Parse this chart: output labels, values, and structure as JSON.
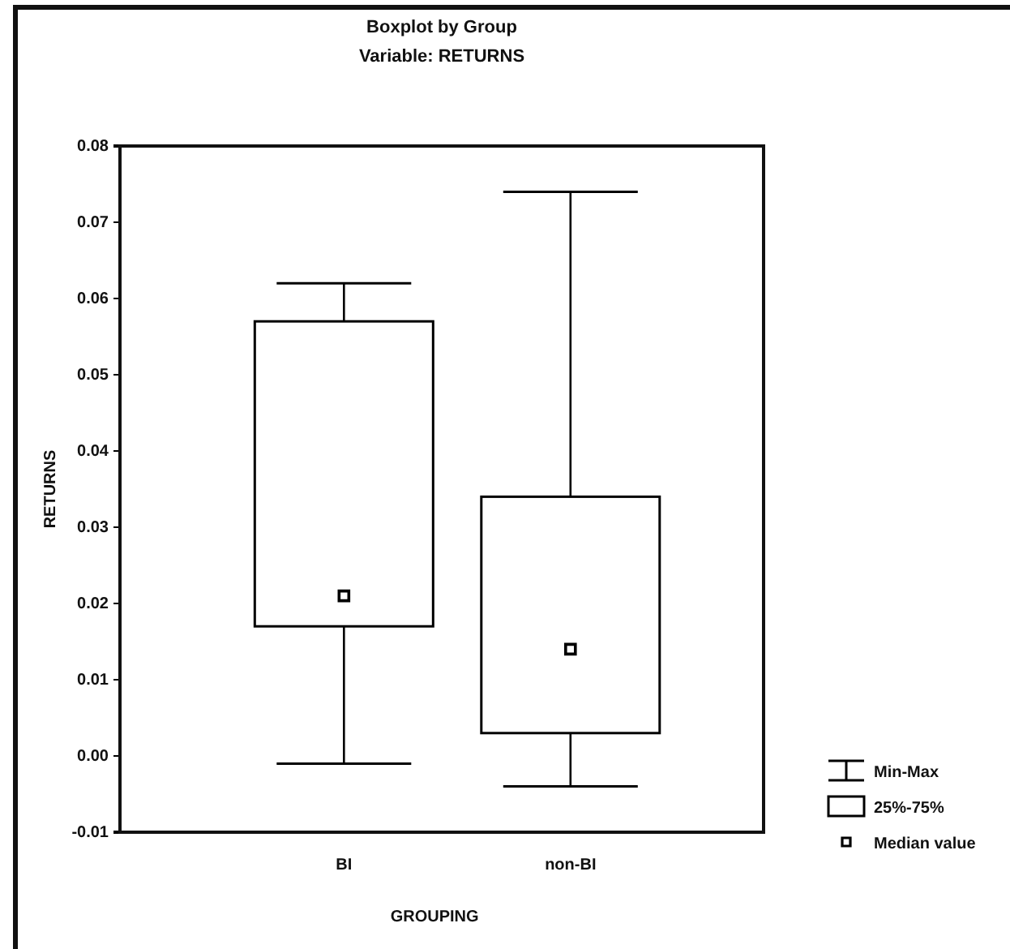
{
  "chart_data": {
    "type": "box",
    "title": "Boxplot by Group",
    "subtitle": "Variable: RETURNS",
    "xlabel": "GROUPING",
    "ylabel": "RETURNS",
    "categories": [
      "BI",
      "non-BI"
    ],
    "boxes": [
      {
        "low": -0.001,
        "q1": 0.017,
        "median": 0.021,
        "q3": 0.057,
        "high": 0.062
      },
      {
        "low": -0.004,
        "q1": 0.003,
        "median": 0.014,
        "q3": 0.034,
        "high": 0.074
      }
    ],
    "color": "#000000",
    "marker": "square",
    "ylim": [
      -0.01,
      0.08
    ],
    "yticks": [
      -0.01,
      {
        "value": 0,
        "label": "0.00"
      },
      0.01,
      0.02,
      0.03,
      0.04,
      0.05,
      0.06,
      0.07,
      0.08
    ],
    "annotations": [
      "Min-Max",
      "25%-75%",
      "Median value"
    ]
  }
}
